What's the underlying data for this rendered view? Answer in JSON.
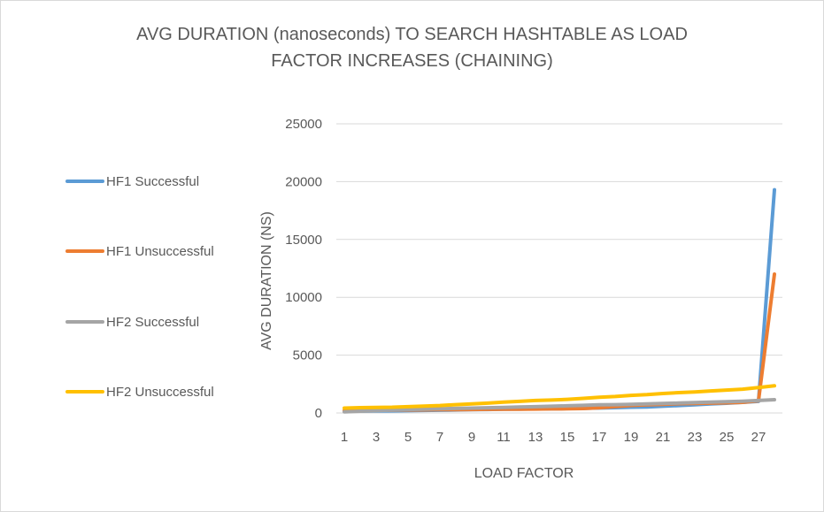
{
  "chart_data": {
    "type": "line",
    "title_lines": [
      "AVG DURATION (nanoseconds) TO SEARCH HASHTABLE AS LOAD",
      "FACTOR INCREASES (CHAINING)"
    ],
    "xlabel": "LOAD FACTOR",
    "ylabel": "AVG DURATION (NS)",
    "ylim": [
      0,
      25000
    ],
    "y_ticks": [
      0,
      5000,
      10000,
      15000,
      20000,
      25000
    ],
    "x": [
      1,
      2,
      3,
      4,
      5,
      6,
      7,
      8,
      9,
      10,
      11,
      12,
      13,
      14,
      15,
      16,
      17,
      18,
      19,
      20,
      21,
      22,
      23,
      24,
      25,
      26,
      27,
      28
    ],
    "x_tick_labels": [
      "1",
      "3",
      "5",
      "7",
      "9",
      "11",
      "13",
      "15",
      "17",
      "19",
      "21",
      "23",
      "25",
      "27"
    ],
    "grid": true,
    "legend_position": "left",
    "series": [
      {
        "name": "HF1 Successful",
        "color": "#5b9bd5",
        "values": [
          150,
          160,
          170,
          180,
          200,
          220,
          240,
          260,
          280,
          300,
          320,
          340,
          350,
          360,
          380,
          400,
          430,
          460,
          500,
          520,
          580,
          640,
          700,
          780,
          840,
          920,
          1000,
          19300
        ]
      },
      {
        "name": "HF1 Unsuccessful",
        "color": "#ed7d31",
        "values": [
          200,
          220,
          240,
          250,
          260,
          270,
          280,
          290,
          300,
          310,
          320,
          330,
          340,
          350,
          360,
          380,
          450,
          550,
          650,
          700,
          750,
          800,
          820,
          850,
          880,
          920,
          1050,
          12000
        ]
      },
      {
        "name": "HF2 Successful",
        "color": "#a5a5a5",
        "values": [
          100,
          150,
          200,
          250,
          300,
          330,
          360,
          390,
          420,
          450,
          480,
          510,
          540,
          580,
          620,
          660,
          700,
          720,
          740,
          780,
          820,
          860,
          900,
          940,
          980,
          1020,
          1080,
          1150
        ]
      },
      {
        "name": "HF2 Unsuccessful",
        "color": "#ffc000",
        "values": [
          420,
          460,
          480,
          500,
          540,
          600,
          640,
          720,
          780,
          850,
          930,
          1000,
          1080,
          1120,
          1180,
          1260,
          1360,
          1420,
          1520,
          1580,
          1680,
          1760,
          1820,
          1900,
          1980,
          2060,
          2200,
          2350
        ]
      }
    ]
  }
}
